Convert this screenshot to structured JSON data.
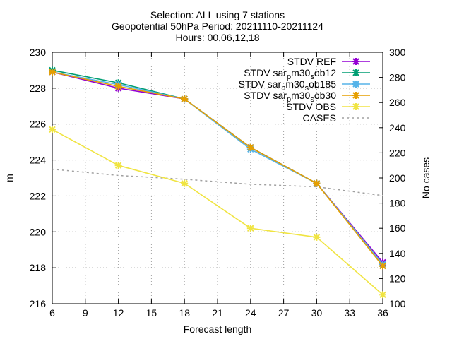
{
  "title_lines": [
    "Selection: ALL using     7 stations",
    "Geopotential 50hPa   Period: 20211110-20211124",
    "Hours: 00,06,12,18"
  ],
  "chart_data": {
    "type": "line",
    "xlabel": "Forecast length",
    "ylabel": "m",
    "y2label": "No cases",
    "xlim": [
      6,
      36
    ],
    "ylim": [
      216,
      230
    ],
    "y2lim": [
      100,
      300
    ],
    "xticks": [
      6,
      9,
      12,
      15,
      18,
      21,
      24,
      27,
      30,
      33,
      36
    ],
    "yticks": [
      216,
      218,
      220,
      222,
      224,
      226,
      228,
      230
    ],
    "y2ticks": [
      100,
      120,
      140,
      160,
      180,
      200,
      220,
      240,
      260,
      280,
      300
    ],
    "grid": true,
    "legend_position": "top-right",
    "x": [
      6,
      12,
      18,
      24,
      30,
      36
    ],
    "series": [
      {
        "name": "STDV REF",
        "color": "#9400d3",
        "axis": "y",
        "style": "line-points",
        "values": [
          228.9,
          228.0,
          227.4,
          224.7,
          222.7,
          218.3
        ]
      },
      {
        "name": "STDV sar_p m30_s ob12",
        "legend_parts": [
          "STDV sar",
          "p",
          "m30",
          "s",
          "ob12"
        ],
        "color": "#009e73",
        "axis": "y",
        "style": "line-points",
        "values": [
          229.0,
          228.3,
          227.4,
          224.7,
          222.7,
          218.2
        ]
      },
      {
        "name": "STDV sar_p m30_s ob185",
        "legend_parts": [
          "STDV sar",
          "p",
          "m30",
          "s",
          "ob185"
        ],
        "color": "#56b4e9",
        "axis": "y",
        "style": "line-points",
        "values": [
          228.9,
          228.2,
          227.4,
          224.6,
          222.7,
          218.2
        ]
      },
      {
        "name": "STDV sar_p m30_s ob30",
        "legend_parts": [
          "STDV sar",
          "p",
          "m30",
          "s",
          "ob30"
        ],
        "color": "#e69f00",
        "axis": "y",
        "style": "line-points",
        "values": [
          228.9,
          228.1,
          227.4,
          224.7,
          222.7,
          218.1
        ]
      },
      {
        "name": "STDV OBS",
        "color": "#f0e442",
        "axis": "y",
        "style": "line-points",
        "values": [
          225.7,
          223.7,
          222.7,
          220.2,
          219.7,
          216.5
        ]
      },
      {
        "name": "CASES",
        "color": "#a0a0a0",
        "axis": "y2",
        "style": "dashed",
        "values": [
          207,
          202,
          199,
          195,
          193,
          186
        ]
      }
    ]
  }
}
